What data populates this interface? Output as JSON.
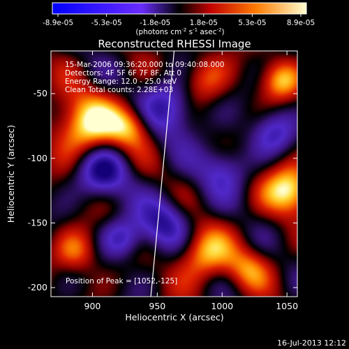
{
  "chart_data": {
    "type": "heatmap",
    "title": "Reconstructed RHESSI Image",
    "xlabel": "Heliocentric X (arcsec)",
    "ylabel": "Heliocentric Y (arcsec)",
    "xlim": [
      868,
      1058
    ],
    "ylim": [
      -207,
      -17
    ],
    "x_ticks": [
      900,
      950,
      1000,
      1050
    ],
    "y_ticks": [
      -50,
      -100,
      -150,
      -200
    ],
    "colorbar": {
      "ticks": [
        "-8.9e-05",
        "-5.3e-05",
        "-1.8e-05",
        "1.8e-05",
        "5.3e-05",
        "8.9e-05"
      ],
      "range": [
        -8.9e-05,
        8.9e-05
      ],
      "units_base": "(photons cm",
      "units_sup1": "-2",
      "units_mid": " s",
      "units_sup2": "-1",
      "units_end": " asec",
      "units_sup3": "-2",
      "units_close": ")"
    },
    "annotations": [
      "15-Mar-2006 09:36:20.000 to 09:40:08.000",
      "Detectors: 4F 5F 6F 7F 8F, Att 0",
      "Energy Range: 12.0 - 25.0 keV",
      "Clean    Total counts: 2.28E+03"
    ],
    "peak_label": "Position of Peak = [1052,-125]",
    "peak": [
      1052,
      -125
    ],
    "limb_line": [
      [
        945,
        -207
      ],
      [
        963,
        -17
      ]
    ],
    "sources": [
      {
        "x": 895,
        "y": -75,
        "w": 1.0,
        "s": 18
      },
      {
        "x": 930,
        "y": -75,
        "w": 0.75,
        "s": 12
      },
      {
        "x": 908,
        "y": -110,
        "w": -0.95,
        "s": 14
      },
      {
        "x": 888,
        "y": -172,
        "w": 0.6,
        "s": 12
      },
      {
        "x": 923,
        "y": -162,
        "w": -0.7,
        "s": 11
      },
      {
        "x": 960,
        "y": -60,
        "w": -0.85,
        "s": 16
      },
      {
        "x": 955,
        "y": -150,
        "w": -0.8,
        "s": 14
      },
      {
        "x": 985,
        "y": -175,
        "w": 0.8,
        "s": 15
      },
      {
        "x": 1052,
        "y": -125,
        "w": 1.0,
        "s": 14
      },
      {
        "x": 1040,
        "y": -80,
        "w": -0.6,
        "s": 12
      },
      {
        "x": 1020,
        "y": -185,
        "w": 0.55,
        "s": 12
      },
      {
        "x": 1000,
        "y": -108,
        "w": -0.6,
        "s": 14
      },
      {
        "x": 985,
        "y": -40,
        "w": 0.6,
        "s": 14
      },
      {
        "x": 1045,
        "y": -40,
        "w": 0.7,
        "s": 11
      }
    ]
  },
  "footer": {
    "timestamp": "16-Jul-2013 12:12"
  }
}
